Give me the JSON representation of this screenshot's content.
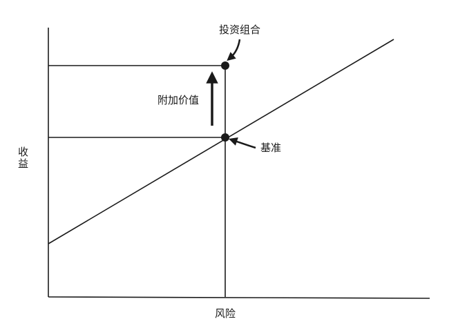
{
  "diagram": {
    "labels": {
      "portfolio": "投资组合",
      "value_added": "附加价值",
      "benchmark": "基准",
      "y_axis": "收益",
      "x_axis": "风险"
    },
    "colors": {
      "ink": "#1a1a1a",
      "background": "#ffffff"
    }
  }
}
